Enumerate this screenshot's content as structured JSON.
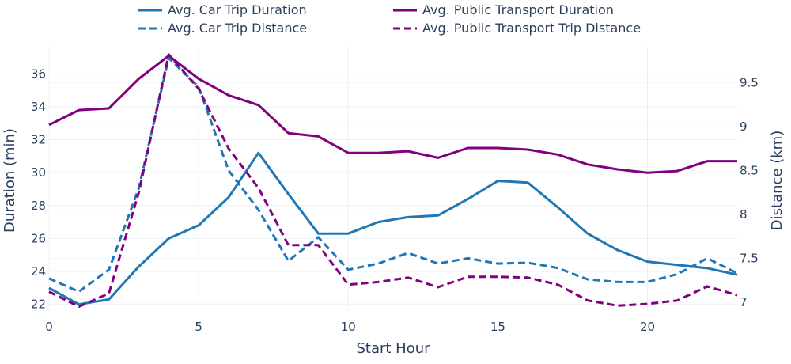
{
  "chart_data": {
    "type": "line",
    "xlabel": "Start Hour",
    "ylabel": "Duration (min)",
    "y2label": "Distance (km)",
    "xlim": [
      0,
      23
    ],
    "ylim": [
      21.6,
      37.6
    ],
    "y2lim": [
      6.9,
      9.9
    ],
    "xticks": [
      0,
      5,
      10,
      15,
      20
    ],
    "yticks": [
      22,
      24,
      26,
      28,
      30,
      32,
      34,
      36
    ],
    "y2ticks": [
      7,
      7.5,
      8,
      8.5,
      9,
      9.5
    ],
    "y2ticklabels": [
      "7",
      "7.5",
      "8",
      "8.5",
      "9",
      "9.5"
    ],
    "grid": true,
    "legend_position": "top",
    "x": [
      0,
      1,
      2,
      3,
      4,
      5,
      6,
      7,
      8,
      9,
      10,
      11,
      12,
      13,
      14,
      15,
      16,
      17,
      18,
      19,
      20,
      21,
      22,
      23
    ],
    "series": [
      {
        "name": "Avg. Car Trip Duration",
        "axis": "y",
        "color": "#1f77b4",
        "dash": "solid",
        "values": [
          23.0,
          22.0,
          22.3,
          24.3,
          26.0,
          26.8,
          28.5,
          31.2,
          28.7,
          26.3,
          26.3,
          27.0,
          27.3,
          27.4,
          28.4,
          29.5,
          29.4,
          27.9,
          26.3,
          25.3,
          24.6,
          24.4,
          24.2,
          23.8
        ]
      },
      {
        "name": "Avg. Public Transport Duration",
        "axis": "y",
        "color": "#800080",
        "dash": "solid",
        "values": [
          32.9,
          33.8,
          33.9,
          35.7,
          37.1,
          35.7,
          34.7,
          34.1,
          32.4,
          32.2,
          31.2,
          31.2,
          31.3,
          30.9,
          31.5,
          31.5,
          31.4,
          31.1,
          30.5,
          30.2,
          30.0,
          30.1,
          30.7,
          30.7
        ]
      },
      {
        "name": "Avg. Car Trip Distance",
        "axis": "y2",
        "color": "#1f77b4",
        "dash": "dash",
        "values": [
          7.27,
          7.12,
          7.37,
          8.3,
          9.78,
          9.45,
          8.5,
          8.05,
          7.47,
          7.74,
          7.37,
          7.44,
          7.56,
          7.44,
          7.5,
          7.44,
          7.45,
          7.39,
          7.26,
          7.23,
          7.23,
          7.32,
          7.5,
          7.33
        ]
      },
      {
        "name": "Avg. Public Transport Trip Distance",
        "axis": "y2",
        "color": "#800080",
        "dash": "dash",
        "values": [
          7.12,
          6.95,
          7.1,
          8.25,
          9.82,
          9.43,
          8.75,
          8.3,
          7.65,
          7.65,
          7.2,
          7.23,
          7.28,
          7.17,
          7.29,
          7.29,
          7.28,
          7.2,
          7.02,
          6.96,
          6.98,
          7.02,
          7.18,
          7.08
        ]
      }
    ]
  }
}
